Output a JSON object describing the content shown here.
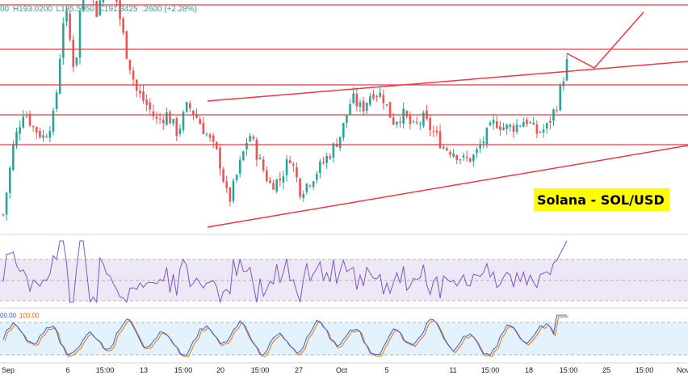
{
  "header": {
    "ohlc_prefix": "00",
    "high": "H193.0200",
    "low": "L185.5050",
    "close": "C191.3425",
    "change": ".2600 (+2.28%)"
  },
  "label": "Solana - SOL/USD",
  "stoch_legend": {
    "k": "00.00",
    "d": "100.00"
  },
  "x_ticks": [
    "Sep",
    "6",
    "15:00",
    "13",
    "15:00",
    "20",
    "15:00",
    "27",
    "Oct",
    "5",
    "11",
    "15:00",
    "18",
    "15:00",
    "25",
    "15:00",
    "Nov"
  ],
  "colors": {
    "up": "#26a69a",
    "down": "#ef5350",
    "annotation": "#f23645",
    "rsi_line": "#7e57c2",
    "rsi_band": "#ede7f6",
    "stoch_k": "#2962ff",
    "stoch_d": "#ff6d00",
    "stoch_band": "#e3f2fd"
  },
  "chart_data": {
    "type": "candlestick",
    "instrument": "SOL/USD",
    "close_path": [
      [
        0,
        125
      ],
      [
        1,
        155
      ],
      [
        2,
        170
      ],
      [
        3,
        162
      ],
      [
        4,
        158
      ],
      [
        5,
        168
      ],
      [
        6,
        215
      ],
      [
        7,
        185
      ],
      [
        8,
        240
      ],
      [
        9,
        210
      ],
      [
        10,
        225
      ],
      [
        11,
        218
      ],
      [
        12,
        195
      ],
      [
        13,
        178
      ],
      [
        14,
        172
      ],
      [
        15,
        165
      ],
      [
        16,
        168
      ],
      [
        17,
        160
      ],
      [
        18,
        172
      ],
      [
        19,
        166
      ],
      [
        20,
        158
      ],
      [
        21,
        150
      ],
      [
        22,
        130
      ],
      [
        23,
        145
      ],
      [
        24,
        160
      ],
      [
        25,
        148
      ],
      [
        26,
        138
      ],
      [
        27,
        140
      ],
      [
        28,
        150
      ],
      [
        29,
        135
      ],
      [
        30,
        140
      ],
      [
        31,
        146
      ],
      [
        32,
        152
      ],
      [
        33,
        160
      ],
      [
        34,
        175
      ],
      [
        35,
        170
      ],
      [
        36,
        178
      ],
      [
        37,
        176
      ],
      [
        38,
        165
      ],
      [
        39,
        168
      ],
      [
        40,
        162
      ],
      [
        41,
        166
      ],
      [
        42,
        160
      ],
      [
        43,
        154
      ],
      [
        44,
        152
      ],
      [
        45,
        148
      ],
      [
        46,
        150
      ],
      [
        47,
        158
      ],
      [
        48,
        165
      ],
      [
        49,
        162
      ],
      [
        50,
        163
      ],
      [
        51,
        166
      ],
      [
        52,
        160
      ],
      [
        53,
        162
      ],
      [
        54,
        172
      ],
      [
        55,
        190
      ]
    ]
  }
}
